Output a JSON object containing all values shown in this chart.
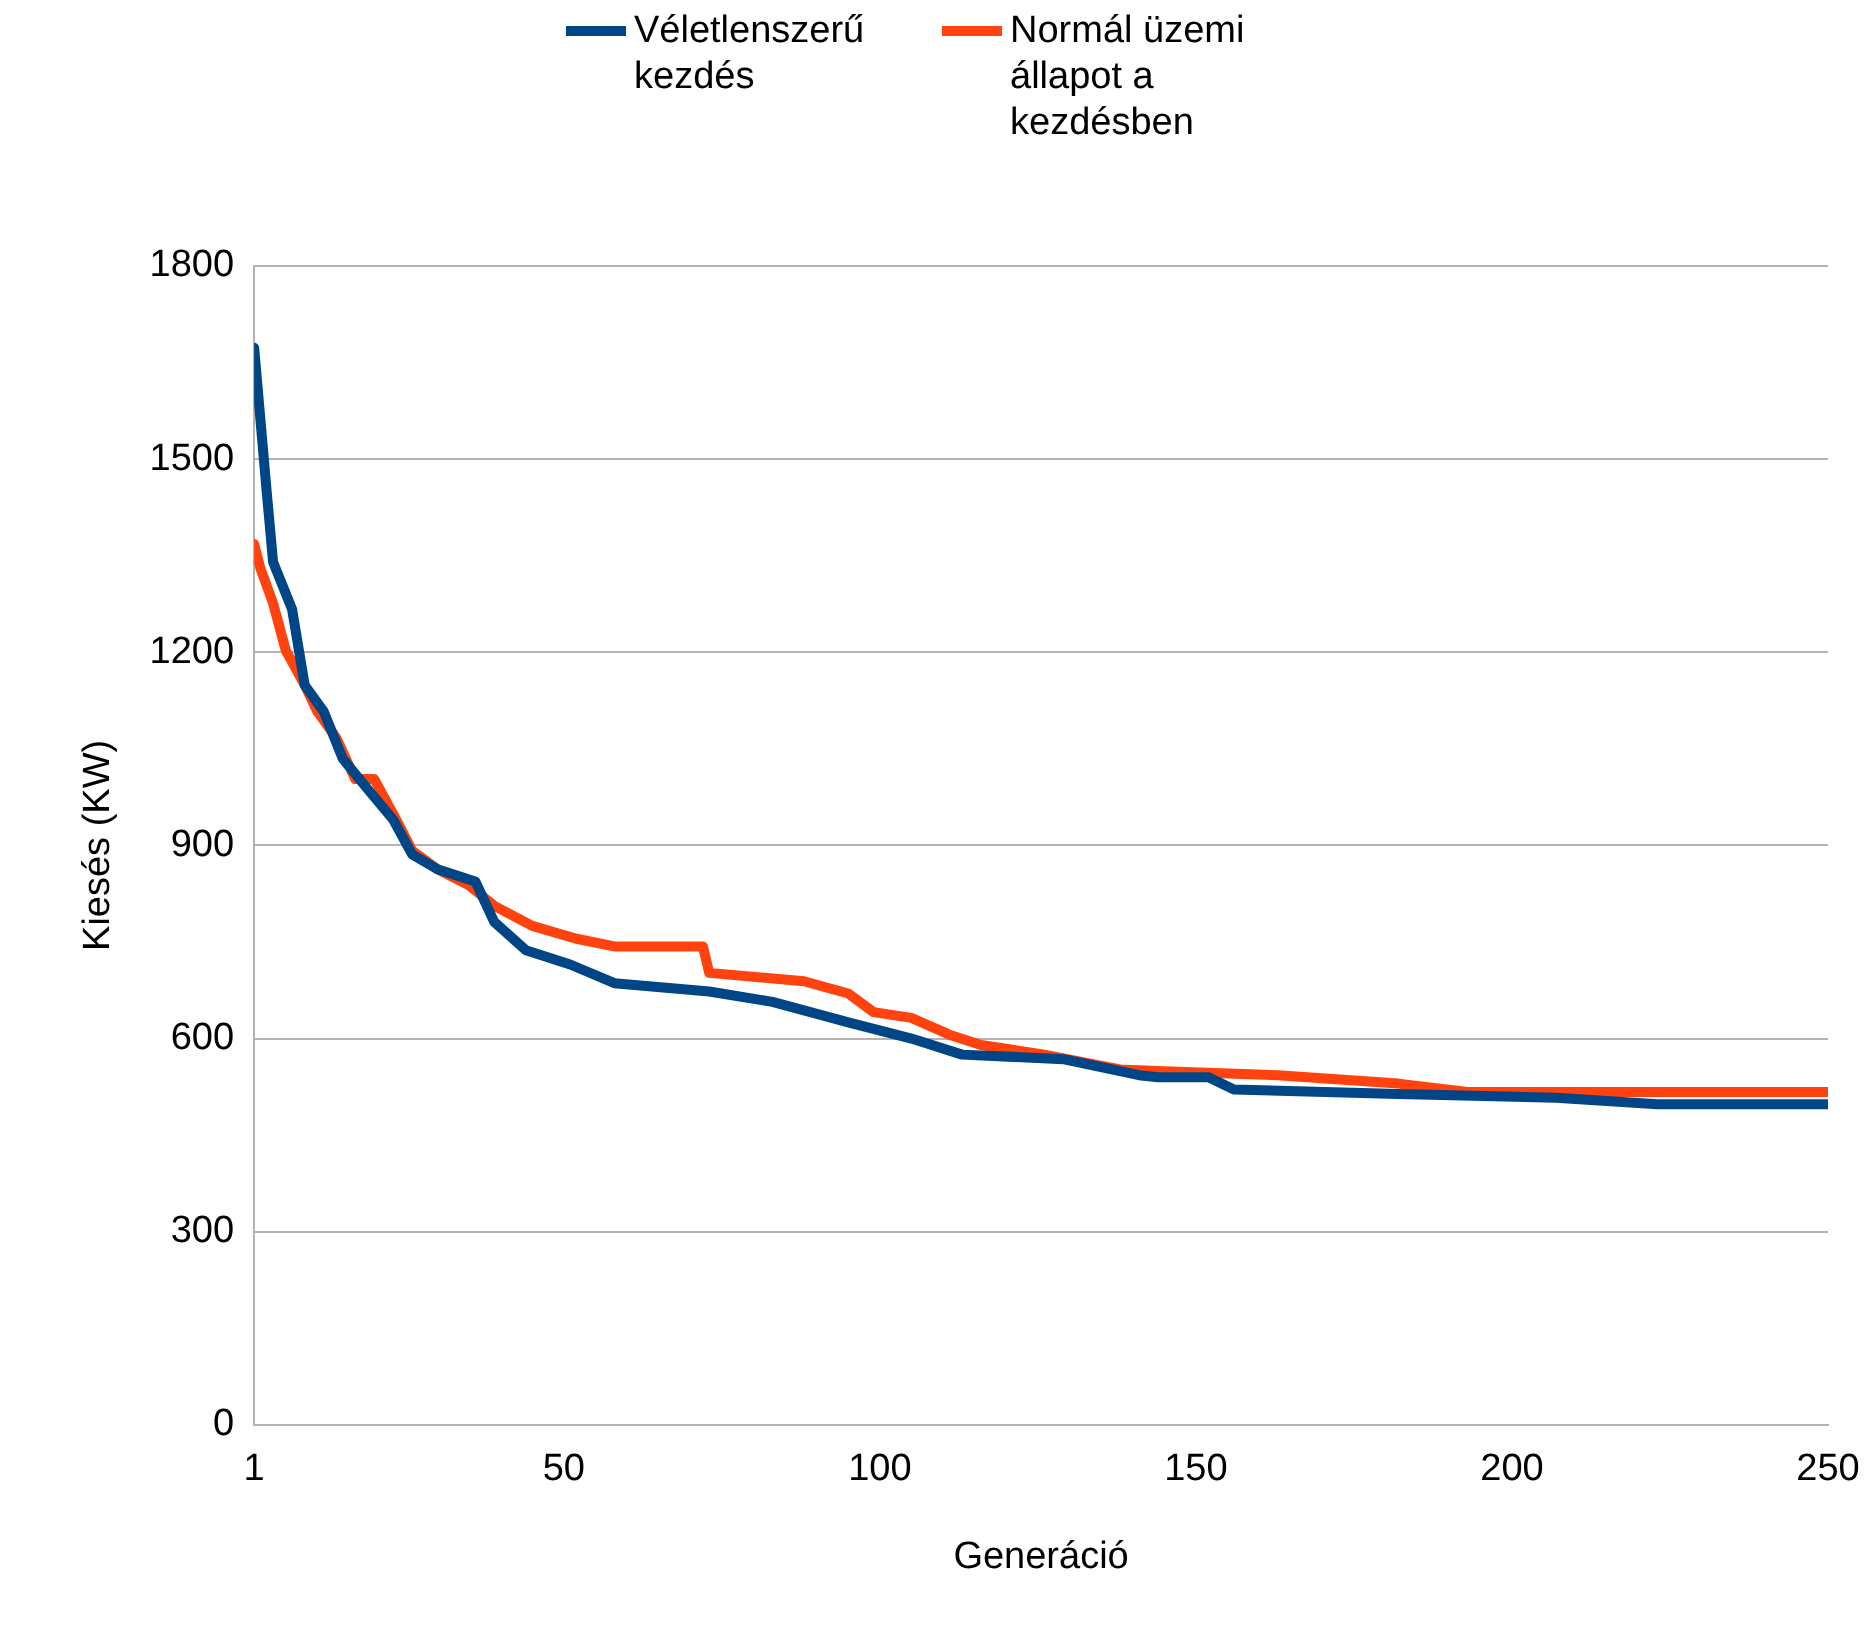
{
  "chart_data": {
    "type": "line",
    "xlabel": "Generáció",
    "ylabel": "Kiesés (KW)",
    "xlim": [
      1,
      250
    ],
    "xticks": [
      1,
      50,
      100,
      150,
      200,
      250
    ],
    "ylim": [
      0,
      1800
    ],
    "yticks": [
      0,
      300,
      600,
      900,
      1200,
      1500,
      1800
    ],
    "grid": "y",
    "legend": "top",
    "marker": "none",
    "line_style": "solid",
    "series": [
      {
        "name": "Véletlenszerű kezdés",
        "color": "#004586",
        "x": [
          1,
          3,
          4,
          7,
          9,
          12,
          15,
          19,
          23,
          26,
          30,
          36,
          39,
          44,
          51,
          58,
          73,
          83,
          95,
          105,
          113,
          129,
          141,
          144,
          152,
          156,
          182,
          207,
          223,
          250
        ],
        "values": [
          1673,
          1448,
          1340,
          1267,
          1149,
          1108,
          1035,
          987,
          940,
          886,
          863,
          844,
          781,
          737,
          715,
          686,
          673,
          657,
          625,
          600,
          575,
          568,
          543,
          540,
          540,
          521,
          514,
          508,
          498,
          498
        ]
      },
      {
        "name": "Normál üzemi állapot a kezdésben",
        "color": "#ff420e",
        "x": [
          1,
          2,
          4,
          6,
          9,
          11,
          14,
          17,
          20,
          23,
          26,
          30,
          35,
          39,
          45,
          52,
          58,
          72,
          73,
          88,
          95,
          99,
          105,
          111,
          116,
          126,
          138,
          145,
          163,
          182,
          193,
          250
        ],
        "values": [
          1368,
          1330,
          1276,
          1203,
          1149,
          1108,
          1067,
          1003,
          1003,
          949,
          892,
          863,
          838,
          806,
          775,
          755,
          743,
          743,
          702,
          689,
          670,
          641,
          632,
          606,
          590,
          575,
          552,
          549,
          543,
          530,
          517,
          517
        ]
      }
    ]
  }
}
